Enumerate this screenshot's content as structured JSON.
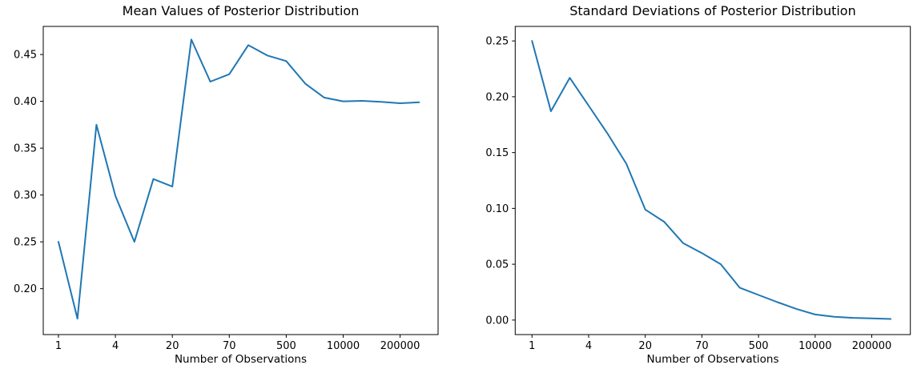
{
  "figure": {
    "background_color": "#ffffff",
    "axes_color": "#000000",
    "line_color": "#1f77b4"
  },
  "chart_data": [
    {
      "type": "line",
      "title": "Mean Values of Posterior Distribution",
      "xlabel": "Number of Observations",
      "ylabel": "",
      "legend": "none",
      "grid": false,
      "x_axis_note": "20 evenly spaced points; log-style tick labels shown at every 3rd point",
      "x_tick_labels": [
        "1",
        "4",
        "20",
        "70",
        "500",
        "10000",
        "200000"
      ],
      "x_tick_indices": [
        0,
        3,
        6,
        9,
        12,
        15,
        18
      ],
      "y_ticks": [
        0.2,
        0.25,
        0.3,
        0.35,
        0.4,
        0.45
      ],
      "y_tick_labels": [
        "0.20",
        "0.25",
        "0.30",
        "0.35",
        "0.40",
        "0.45"
      ],
      "ylim": [
        0.151,
        0.48
      ],
      "values": [
        0.25,
        0.168,
        0.375,
        0.299,
        0.25,
        0.317,
        0.309,
        0.466,
        0.421,
        0.429,
        0.46,
        0.449,
        0.443,
        0.419,
        0.404,
        0.4,
        0.4005,
        0.3995,
        0.398,
        0.399
      ]
    },
    {
      "type": "line",
      "title": "Standard Deviations of Posterior Distribution",
      "xlabel": "Number of Observations",
      "ylabel": "",
      "legend": "none",
      "grid": false,
      "x_axis_note": "20 evenly spaced points; log-style tick labels shown at every 3rd point",
      "x_tick_labels": [
        "1",
        "4",
        "20",
        "70",
        "500",
        "10000",
        "200000"
      ],
      "x_tick_indices": [
        0,
        3,
        6,
        9,
        12,
        15,
        18
      ],
      "y_ticks": [
        0.0,
        0.05,
        0.1,
        0.15,
        0.2,
        0.25
      ],
      "y_tick_labels": [
        "0.00",
        "0.05",
        "0.10",
        "0.15",
        "0.20",
        "0.25"
      ],
      "ylim": [
        -0.013,
        0.263
      ],
      "values": [
        0.25,
        0.187,
        0.217,
        0.192,
        0.167,
        0.14,
        0.099,
        0.088,
        0.069,
        0.06,
        0.05,
        0.029,
        0.0225,
        0.016,
        0.01,
        0.005,
        0.003,
        0.002,
        0.0015,
        0.001
      ]
    }
  ]
}
